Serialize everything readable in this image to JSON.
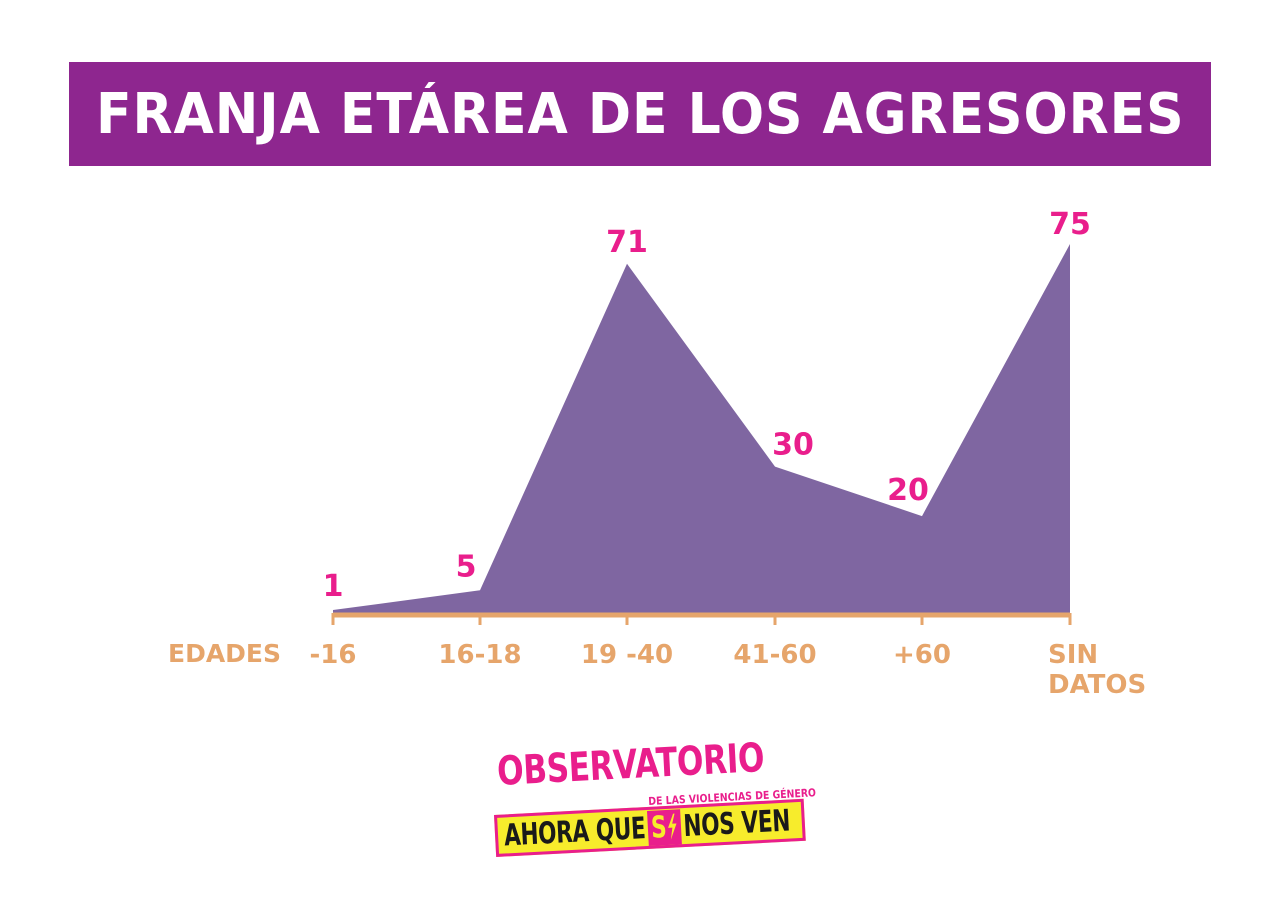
{
  "title": "FRANJA ETÁREA DE LOS AGRESORES",
  "colors": {
    "banner": "#8e268f",
    "banner_text": "#ffffff",
    "area": "#7f66a1",
    "value_labels": "#e91e8c",
    "axis": "#e6a56b",
    "logo_pink": "#e91e8c",
    "logo_yellow": "#f7ec2c",
    "logo_black": "#1a1a1a"
  },
  "chart_data": {
    "type": "area",
    "xlabel": "EDADES",
    "categories": [
      [
        "-16"
      ],
      [
        "16-18"
      ],
      [
        "19 -40"
      ],
      [
        "41-60"
      ],
      [
        "+60"
      ],
      [
        "SIN",
        "DATOS"
      ]
    ],
    "values": [
      1,
      5,
      71,
      30,
      20,
      75
    ],
    "ylim": [
      0,
      75
    ],
    "grid": false,
    "legend": "none"
  },
  "logo": {
    "word": "OBSERVATORIO",
    "subtitle": "DE LAS VIOLENCIAS DE GÉNERO",
    "strip_before": "AHORA QUE",
    "strip_si": "S",
    "strip_after": "NOS VEN",
    "bolt_icon": "lightning-bolt-icon"
  }
}
